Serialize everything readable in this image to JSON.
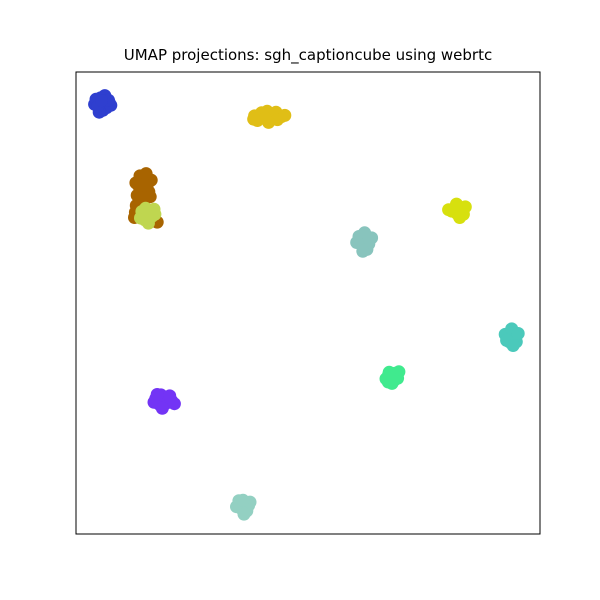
{
  "chart_data": {
    "type": "scatter",
    "title": "UMAP projections: sgh_captioncube using webrtc",
    "xlabel": "",
    "ylabel": "",
    "xlim": [
      0,
      100
    ],
    "ylim": [
      0,
      100
    ],
    "ticks_visible": false,
    "grid": false,
    "legend": false,
    "series": [
      {
        "color": "#2f3fcf",
        "points": [
          [
            4,
            93
          ],
          [
            6,
            93.2
          ],
          [
            7.2,
            93.3
          ],
          [
            5.3,
            94.4
          ],
          [
            6.4,
            94.2
          ],
          [
            5.2,
            92.4
          ],
          [
            6.6,
            92.3
          ],
          [
            5.8,
            91.7
          ],
          [
            4.3,
            94.1
          ],
          [
            7.5,
            92.8
          ],
          [
            5,
            91.3
          ],
          [
            6.2,
            94.9
          ],
          [
            4.7,
            92.6
          ],
          [
            7,
            93.9
          ],
          [
            5.5,
            93.8
          ]
        ]
      },
      {
        "color": "#e0be16",
        "points": [
          [
            38.5,
            90.5
          ],
          [
            40.3,
            90.2
          ],
          [
            42.2,
            90.7
          ],
          [
            44.2,
            90.3
          ],
          [
            41.2,
            91.5
          ],
          [
            39.1,
            89.5
          ],
          [
            43.1,
            91.3
          ],
          [
            40,
            91.2
          ],
          [
            43.4,
            89.7
          ],
          [
            41.5,
            89.1
          ],
          [
            38.3,
            89.8
          ],
          [
            45,
            90.6
          ],
          [
            40.8,
            90
          ]
        ]
      },
      {
        "color": "#a86400",
        "points": [
          [
            13.5,
            75.4
          ],
          [
            14.6,
            76.8
          ],
          [
            15.5,
            75.9
          ],
          [
            14.1,
            74.4
          ],
          [
            15.7,
            74.1
          ],
          [
            13.2,
            73.3
          ],
          [
            14.9,
            72.9
          ],
          [
            13.8,
            77.5
          ],
          [
            16.2,
            76.6
          ],
          [
            14.5,
            71.8
          ],
          [
            13,
            71.1
          ],
          [
            15.1,
            78
          ],
          [
            12.9,
            76
          ],
          [
            16,
            73
          ],
          [
            12.6,
            68.5
          ],
          [
            12.8,
            69.6
          ],
          [
            17.5,
            67.5
          ]
        ]
      },
      {
        "color": "#bfd650",
        "points": [
          [
            14.2,
            69.8
          ],
          [
            15.4,
            69.4
          ],
          [
            16.4,
            68.8
          ],
          [
            14.8,
            68
          ],
          [
            16.8,
            70.3
          ],
          [
            13.9,
            68.4
          ],
          [
            15.6,
            67.3
          ],
          [
            17,
            69.2
          ],
          [
            15,
            70.5
          ]
        ]
      },
      {
        "color": "#d7e00e",
        "points": [
          [
            81.5,
            70.4
          ],
          [
            82.6,
            70.6
          ],
          [
            83.4,
            69.8
          ],
          [
            82.1,
            69.4
          ],
          [
            81,
            69.9
          ],
          [
            83.9,
            70.8
          ],
          [
            82.7,
            68.5
          ],
          [
            80.3,
            70.2
          ],
          [
            82,
            71.4
          ],
          [
            83.5,
            69.2
          ]
        ]
      },
      {
        "color": "#88c4bd",
        "points": [
          [
            61.2,
            63.4
          ],
          [
            62.5,
            63.9
          ],
          [
            61.9,
            62.4
          ],
          [
            63.1,
            62.8
          ],
          [
            61,
            64.4
          ],
          [
            62.2,
            65.2
          ],
          [
            62.7,
            61.6
          ],
          [
            63.7,
            64.1
          ],
          [
            60.5,
            63.1
          ],
          [
            61.8,
            61.2
          ]
        ]
      },
      {
        "color": "#4bc9bb",
        "points": [
          [
            93.1,
            42.6
          ],
          [
            93.8,
            43.5
          ],
          [
            94.7,
            42.7
          ],
          [
            93.4,
            41.6
          ],
          [
            94.9,
            41.6
          ],
          [
            92.5,
            43.2
          ],
          [
            93.9,
            44.4
          ],
          [
            95.3,
            43.4
          ],
          [
            92.8,
            41.9
          ],
          [
            94.2,
            40.8
          ]
        ]
      },
      {
        "color": "#40ea8e",
        "points": [
          [
            68,
            34
          ],
          [
            68.8,
            34.8
          ],
          [
            67.5,
            35
          ],
          [
            69.3,
            33.7
          ],
          [
            68.1,
            32.6
          ],
          [
            66.8,
            33.6
          ],
          [
            69.6,
            35.1
          ],
          [
            67.3,
            32.9
          ],
          [
            68.6,
            33.3
          ],
          [
            67.4,
            34.5
          ]
        ]
      },
      {
        "color": "#7334f5",
        "points": [
          [
            17.2,
            29.3
          ],
          [
            18.4,
            29.6
          ],
          [
            19.5,
            29.3
          ],
          [
            20.6,
            28.8
          ],
          [
            17.9,
            28.1
          ],
          [
            19.4,
            28.3
          ],
          [
            21.2,
            28.2
          ],
          [
            16.8,
            28.5
          ],
          [
            18.3,
            30.1
          ],
          [
            18.6,
            27.2
          ],
          [
            20.2,
            29.9
          ],
          [
            17.5,
            30.2
          ]
        ]
      },
      {
        "color": "#93d0c2",
        "points": [
          [
            35.3,
            6.2
          ],
          [
            36.5,
            6.7
          ],
          [
            37.2,
            6.2
          ],
          [
            35.9,
            5.2
          ],
          [
            36.8,
            5
          ],
          [
            34.6,
            5.9
          ],
          [
            37.5,
            6.9
          ],
          [
            36.2,
            4.3
          ],
          [
            35.1,
            7.2
          ],
          [
            36,
            7.3
          ]
        ]
      }
    ]
  }
}
